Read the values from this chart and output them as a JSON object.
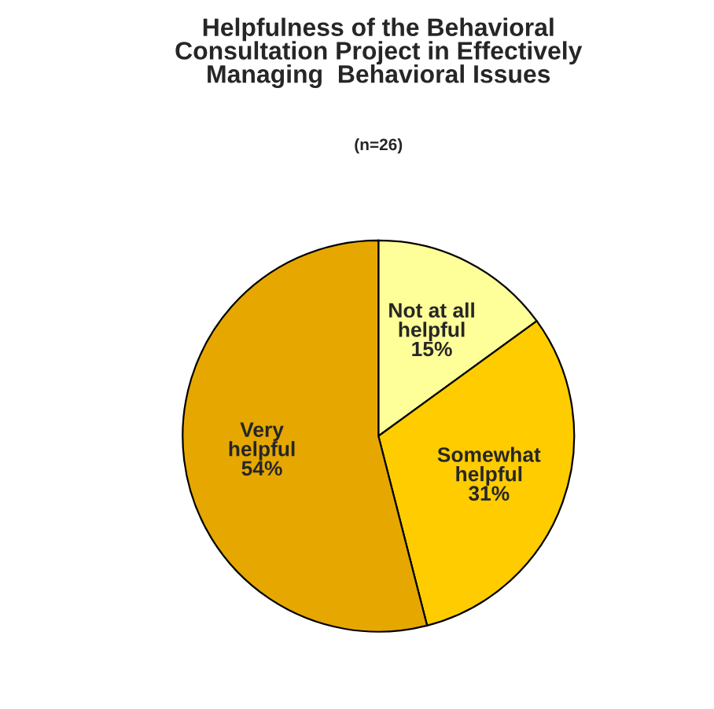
{
  "chart_data": {
    "type": "pie",
    "title": "Helpfulness of the Behavioral\nConsultation Project in Effectively\nManaging  Behavioral Issues",
    "subtitle": "(n=26)",
    "categories": [
      "Not at all\nhelpful",
      "Somewhat\nhelpful",
      "Very\nhelpful"
    ],
    "values": [
      15,
      31,
      54
    ],
    "value_labels": [
      "15%",
      "31%",
      "54%"
    ],
    "colors": [
      "#ffff99",
      "#ffcc00",
      "#e6a800"
    ],
    "legend": false
  }
}
